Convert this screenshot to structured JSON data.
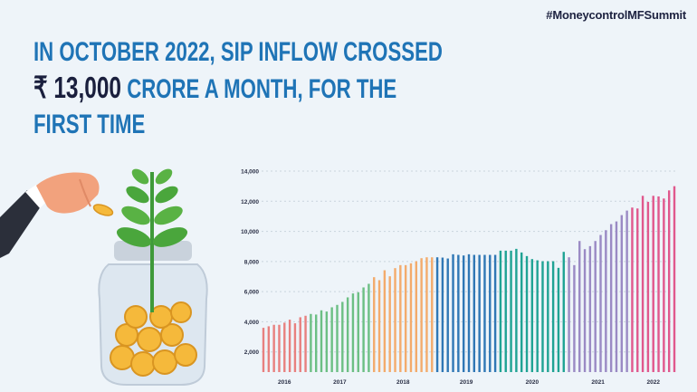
{
  "hashtag": "#MoneycontrolMFSummit",
  "title": {
    "line1": "IN OCTOBER 2022, SIP INFLOW CROSSED",
    "line2_highlight": "₹ 13,000",
    "line2_rest": " CRORE A MONTH, FOR THE",
    "line3": "FIRST TIME"
  },
  "colors": {
    "title": "#1f74b6",
    "highlight": "#1a1f3d",
    "background": "#eef4f9"
  },
  "illustration": {
    "icons": [
      "hand-holding-coin-icon",
      "jar-icon",
      "gold-coins-icon",
      "plant-sprout-icon"
    ]
  },
  "chart_data": {
    "type": "bar",
    "title": "",
    "xlabel": "",
    "ylabel": "",
    "ylim": [
      0,
      14000
    ],
    "yticks": [
      2000,
      4000,
      6000,
      8000,
      10000,
      12000,
      14000
    ],
    "ytick_labels": [
      "2,000",
      "4,000",
      "6,000",
      "8,000",
      "10,000",
      "12,000",
      "14,000"
    ],
    "grid": "horizontal dotted",
    "groups": [
      {
        "year": "2016",
        "color": "#e8807f",
        "values": [
          3600,
          3700,
          3800,
          3800,
          3940,
          4140,
          3900,
          4300,
          4400
        ]
      },
      {
        "year": "2017",
        "color": "#6cbf84",
        "values": [
          4520,
          4480,
          4760,
          4680,
          4960,
          5120,
          5320,
          5620,
          5880,
          5960,
          6280,
          6520
        ]
      },
      {
        "year": "2018",
        "color": "#f3ab6c",
        "values": [
          6960,
          6760,
          7420,
          7020,
          7560,
          7760,
          7760,
          7880,
          8020,
          8220,
          8280,
          8280
        ]
      },
      {
        "year": "2019",
        "color": "#2f77b5",
        "values": [
          8280,
          8260,
          8200,
          8480,
          8440,
          8400,
          8480,
          8440,
          8440,
          8440,
          8440,
          8440
        ]
      },
      {
        "year": "2020",
        "color": "#1fa394",
        "values": [
          8720,
          8720,
          8720,
          8840,
          8600,
          8360,
          8160,
          8080,
          8020,
          8020,
          8020,
          7580,
          8640
        ]
      },
      {
        "year": "2021",
        "color": "#9a8ac4",
        "values": [
          8280,
          7760,
          9360,
          8820,
          9020,
          9360,
          9760,
          10080,
          10480,
          10660,
          11080,
          11380
        ]
      },
      {
        "year": "2022",
        "color": "#e0588d",
        "values": [
          11580,
          11520,
          12360,
          11960,
          12360,
          12320,
          12180,
          12720,
          13000
        ]
      }
    ]
  }
}
